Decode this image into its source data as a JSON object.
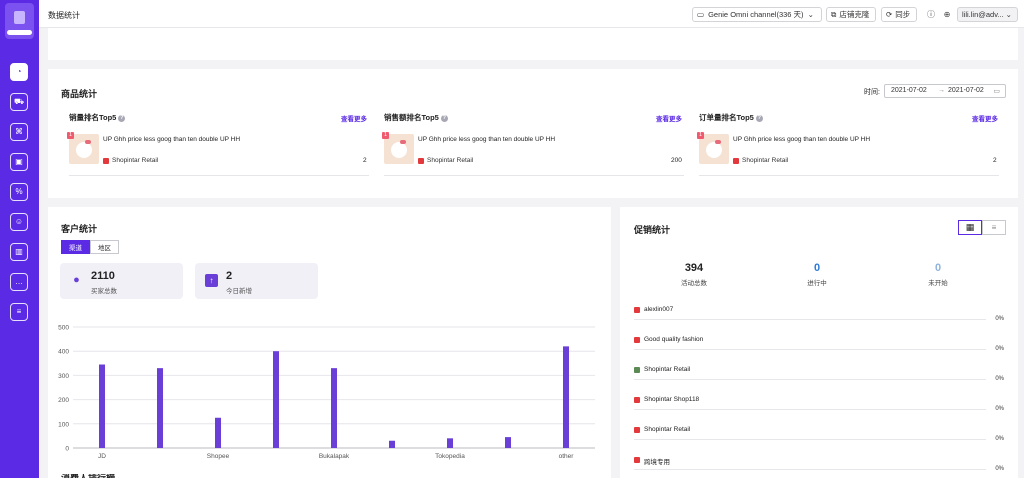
{
  "header": {
    "title": "数据统计",
    "channel_label": "Genie Omni channel(336 天)",
    "clone_label": "店铺克隆",
    "sync_label": "同步",
    "user_label": "lili.lin@adv..."
  },
  "sidebar": {
    "items": [
      {
        "icon": "dashboard-icon",
        "active": true
      },
      {
        "icon": "cart-icon"
      },
      {
        "icon": "org-chart-icon"
      },
      {
        "icon": "box-icon"
      },
      {
        "icon": "percent-icon"
      },
      {
        "icon": "users-icon"
      },
      {
        "icon": "bar-chart-icon"
      },
      {
        "icon": "chat-icon"
      },
      {
        "icon": "note-icon"
      }
    ]
  },
  "products": {
    "title": "商品统计",
    "time_label": "时间:",
    "date_from": "2021-07-02",
    "date_to": "2021-07-02",
    "date_arrow": "→",
    "columns": [
      {
        "title": "销量排名Top5",
        "more": "查看更多",
        "rank": "1",
        "product": "UP Ghh price less goog than ten double UP HH",
        "shop": "Shopintar Retail",
        "value": "2"
      },
      {
        "title": "销售额排名Top5",
        "more": "查看更多",
        "rank": "1",
        "product": "UP Ghh price less goog than ten double UP HH",
        "shop": "Shopintar Retail",
        "value": "200"
      },
      {
        "title": "订单量排名Top5",
        "more": "查看更多",
        "rank": "1",
        "product": "UP Ghh price less goog than ten double UP HH",
        "shop": "Shopintar Retail",
        "value": "2"
      }
    ]
  },
  "customers": {
    "title": "客户统计",
    "tabs": [
      "渠道",
      "地区"
    ],
    "kpis": [
      {
        "value": "2110",
        "label": "买家总数",
        "icon": "user-icon",
        "color": "#6a3fd8"
      },
      {
        "value": "2",
        "label": "今日新增",
        "icon": "arrow-up-icon",
        "color": "#6a3fd8"
      }
    ],
    "next_title": "消费人排行榜"
  },
  "chart_data": {
    "type": "bar",
    "categories": [
      "JD",
      "",
      "Shopee",
      "",
      "Bukalapak",
      "",
      "Tokopedia",
      "",
      "other"
    ],
    "tick_labels": [
      "JD",
      "Shopee",
      "Bukalapak",
      "Tokopedia",
      "other"
    ],
    "x": [
      1,
      2,
      3,
      4,
      5,
      6,
      7,
      8,
      9,
      10,
      11,
      12,
      13,
      14,
      15,
      16
    ],
    "series_values": [
      0,
      345,
      0,
      330,
      0,
      125,
      0,
      400,
      0,
      330,
      0,
      30,
      0,
      40,
      0,
      45
    ],
    "bars": [
      {
        "label": "JD",
        "value": 345
      },
      {
        "label": "",
        "value": 330
      },
      {
        "label": "Shopee",
        "value": 125
      },
      {
        "label": "",
        "value": 400
      },
      {
        "label": "Bukalapak",
        "value": 330
      },
      {
        "label": "",
        "value": 30
      },
      {
        "label": "Tokopedia",
        "value": 40
      },
      {
        "label": "",
        "value": 45
      },
      {
        "label": "other",
        "value": 420
      }
    ],
    "yticks": [
      0,
      100,
      200,
      300,
      400,
      500
    ],
    "ylim": [
      0,
      500
    ],
    "bar_color": "#6a3fd8",
    "grid": true
  },
  "promotions": {
    "title": "促销统计",
    "stats": [
      {
        "value": "394",
        "label": "活动总数",
        "color": "#222222"
      },
      {
        "value": "0",
        "label": "进行中",
        "color": "#2e7bd6"
      },
      {
        "value": "0",
        "label": "未开始",
        "color": "#8fb3df"
      }
    ],
    "shops": [
      {
        "name": "alexlin007",
        "pct": "0%",
        "color": "#e4393c"
      },
      {
        "name": "Good quality fashion",
        "pct": "0%",
        "color": "#e4393c"
      },
      {
        "name": "Shopintar Retail",
        "pct": "0%",
        "color": "#5c8a55"
      },
      {
        "name": "Shopintar Shop118",
        "pct": "0%",
        "color": "#e4393c"
      },
      {
        "name": "Shopintar Retail",
        "pct": "0%",
        "color": "#e4393c"
      },
      {
        "name": "跨境专用",
        "pct": "0%",
        "color": "#e4393c"
      }
    ]
  }
}
